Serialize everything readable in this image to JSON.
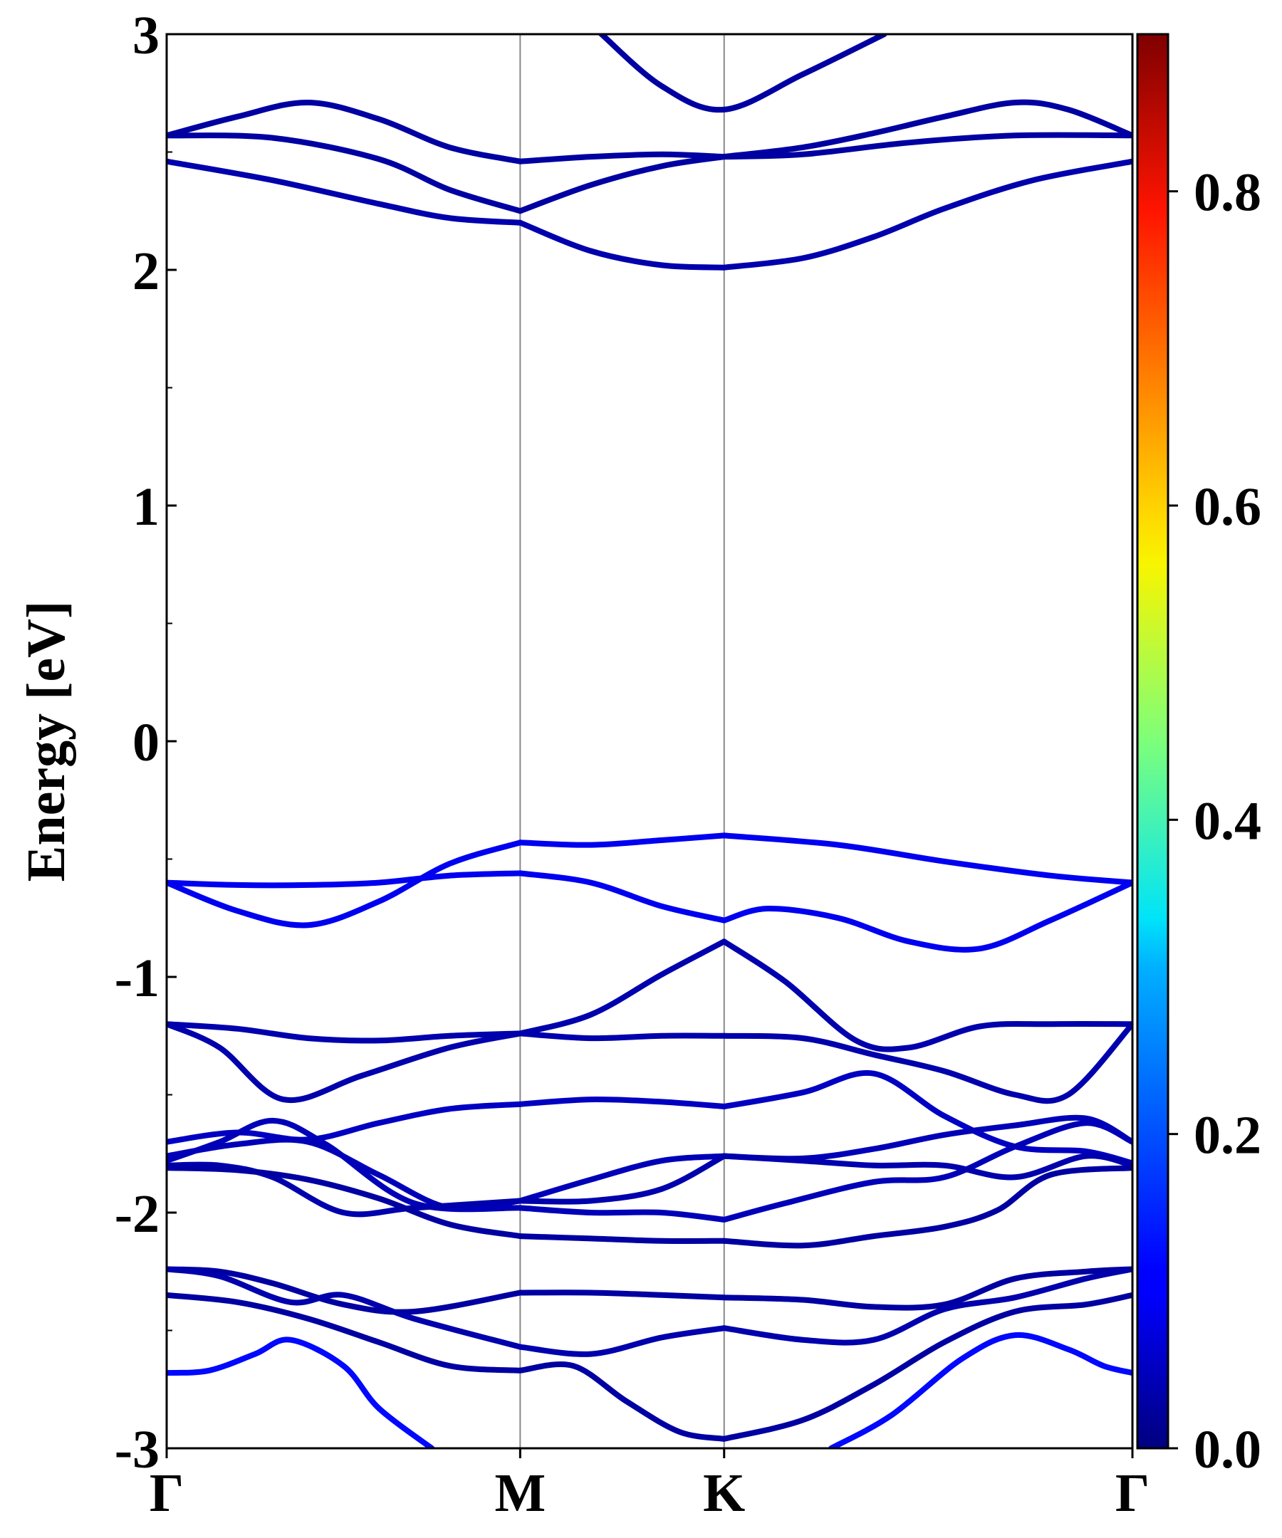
{
  "chart_data": {
    "type": "line",
    "xlabel": "",
    "ylabel": "Energy [eV]",
    "ylim": [
      -3,
      3
    ],
    "yticks": [
      "3",
      "2",
      "1",
      "0",
      "-1",
      "-2",
      "-3"
    ],
    "kpath": {
      "labels": [
        "Γ",
        "M",
        "K",
        "Γ"
      ],
      "positions": [
        0,
        1,
        1.577,
        2.732
      ]
    },
    "grid": false,
    "colorbar": {
      "colormap": "jet",
      "range": [
        0,
        0.9
      ],
      "ticks": [
        "0.0",
        "0.2",
        "0.4",
        "0.6",
        "0.8"
      ]
    },
    "bands": [
      {
        "x": [
          0,
          0.2,
          0.4,
          0.6,
          0.8,
          1.0
        ],
        "y": [
          2.57,
          2.65,
          2.71,
          2.64,
          2.52,
          2.46
        ],
        "weight": 0.03
      },
      {
        "x": [
          1.0,
          1.2,
          1.4,
          1.577
        ],
        "y": [
          2.46,
          2.48,
          2.49,
          2.48
        ],
        "weight": 0.03
      },
      {
        "x": [
          1.577,
          1.8,
          2.0,
          2.2,
          2.4,
          2.55,
          2.732
        ],
        "y": [
          2.48,
          2.52,
          2.58,
          2.65,
          2.71,
          2.68,
          2.57
        ],
        "weight": 0.03
      },
      {
        "x": [
          0,
          0.3,
          0.6,
          0.8,
          1.0
        ],
        "y": [
          2.57,
          2.56,
          2.47,
          2.34,
          2.25
        ],
        "weight": 0.03
      },
      {
        "x": [
          1.0,
          1.2,
          1.4,
          1.577
        ],
        "y": [
          2.25,
          2.36,
          2.44,
          2.48
        ],
        "weight": 0.03
      },
      {
        "x": [
          1.577,
          1.8,
          2.1,
          2.4,
          2.732
        ],
        "y": [
          2.48,
          2.49,
          2.54,
          2.57,
          2.57
        ],
        "weight": 0.03
      },
      {
        "x": [
          0,
          0.3,
          0.6,
          0.8,
          1.0
        ],
        "y": [
          2.46,
          2.38,
          2.28,
          2.22,
          2.2
        ],
        "weight": 0.04
      },
      {
        "x": [
          1.0,
          1.2,
          1.4,
          1.577
        ],
        "y": [
          2.2,
          2.08,
          2.02,
          2.01
        ],
        "weight": 0.04
      },
      {
        "x": [
          1.577,
          1.8,
          2.0,
          2.2,
          2.45,
          2.732
        ],
        "y": [
          2.01,
          2.05,
          2.14,
          2.26,
          2.38,
          2.46
        ],
        "weight": 0.04
      },
      {
        "x": [
          1.23,
          1.4,
          1.577,
          1.8,
          2.03
        ],
        "y": [
          3.0,
          2.78,
          2.68,
          2.83,
          3.0
        ],
        "weight": 0.03
      },
      {
        "x": [
          0,
          0.2,
          0.4,
          0.6,
          0.8,
          1.0
        ],
        "y": [
          -0.6,
          -0.61,
          -0.61,
          -0.6,
          -0.57,
          -0.56
        ],
        "weight": 0.1
      },
      {
        "x": [
          1.0,
          1.2,
          1.4,
          1.577
        ],
        "y": [
          -0.56,
          -0.6,
          -0.7,
          -0.76
        ],
        "weight": 0.1
      },
      {
        "x": [
          1.577,
          1.7,
          1.9,
          2.1,
          2.3,
          2.5,
          2.732
        ],
        "y": [
          -0.76,
          -0.71,
          -0.75,
          -0.85,
          -0.88,
          -0.76,
          -0.6
        ],
        "weight": 0.1
      },
      {
        "x": [
          0,
          0.2,
          0.4,
          0.6,
          0.8,
          1.0
        ],
        "y": [
          -0.6,
          -0.72,
          -0.78,
          -0.68,
          -0.52,
          -0.43
        ],
        "weight": 0.1
      },
      {
        "x": [
          1.0,
          1.2,
          1.4,
          1.577
        ],
        "y": [
          -0.43,
          -0.44,
          -0.42,
          -0.4
        ],
        "weight": 0.1
      },
      {
        "x": [
          1.577,
          1.9,
          2.2,
          2.5,
          2.732
        ],
        "y": [
          -0.4,
          -0.44,
          -0.51,
          -0.57,
          -0.6
        ],
        "weight": 0.1
      },
      {
        "x": [
          0,
          0.2,
          0.4,
          0.6,
          0.8,
          1.0
        ],
        "y": [
          -1.2,
          -1.22,
          -1.26,
          -1.27,
          -1.25,
          -1.24
        ],
        "weight": 0.04
      },
      {
        "x": [
          1.0,
          1.2,
          1.4,
          1.577
        ],
        "y": [
          -1.24,
          -1.16,
          -0.99,
          -0.85
        ],
        "weight": 0.04
      },
      {
        "x": [
          1.577,
          1.75,
          1.95,
          2.1,
          2.3,
          2.5,
          2.732
        ],
        "y": [
          -0.85,
          -1.02,
          -1.27,
          -1.3,
          -1.21,
          -1.2,
          -1.2
        ],
        "weight": 0.04
      },
      {
        "x": [
          0,
          0.15,
          0.33,
          0.55,
          0.8,
          1.0
        ],
        "y": [
          -1.2,
          -1.3,
          -1.52,
          -1.42,
          -1.3,
          -1.24
        ],
        "weight": 0.04
      },
      {
        "x": [
          1.0,
          1.2,
          1.4,
          1.577
        ],
        "y": [
          -1.24,
          -1.26,
          -1.25,
          -1.25
        ],
        "weight": 0.04
      },
      {
        "x": [
          1.577,
          1.8,
          2.0,
          2.2,
          2.4,
          2.55,
          2.732
        ],
        "y": [
          -1.25,
          -1.26,
          -1.33,
          -1.4,
          -1.5,
          -1.5,
          -1.2
        ],
        "weight": 0.04
      },
      {
        "x": [
          0,
          0.2,
          0.4,
          0.6,
          0.8,
          1.0
        ],
        "y": [
          -1.7,
          -1.66,
          -1.69,
          -1.62,
          -1.56,
          -1.54
        ],
        "weight": 0.06
      },
      {
        "x": [
          1.0,
          1.2,
          1.4,
          1.577
        ],
        "y": [
          -1.54,
          -1.52,
          -1.53,
          -1.55
        ],
        "weight": 0.06
      },
      {
        "x": [
          1.577,
          1.8,
          2.0,
          2.2,
          2.4,
          2.6,
          2.732
        ],
        "y": [
          -1.55,
          -1.49,
          -1.41,
          -1.59,
          -1.72,
          -1.74,
          -1.79
        ],
        "weight": 0.06
      },
      {
        "x": [
          0,
          0.15,
          0.3,
          0.45,
          0.7,
          1.0
        ],
        "y": [
          -1.78,
          -1.7,
          -1.61,
          -1.71,
          -1.96,
          -1.98
        ],
        "weight": 0.05
      },
      {
        "x": [
          1.0,
          1.2,
          1.4,
          1.577
        ],
        "y": [
          -1.98,
          -2.0,
          -2.0,
          -2.03
        ],
        "weight": 0.05
      },
      {
        "x": [
          1.577,
          1.75,
          2.0,
          2.2,
          2.4,
          2.6,
          2.732
        ],
        "y": [
          -2.03,
          -1.96,
          -1.87,
          -1.85,
          -1.72,
          -1.62,
          -1.7
        ],
        "weight": 0.05
      },
      {
        "x": [
          0,
          0.2,
          0.4,
          0.6,
          0.8,
          1.0
        ],
        "y": [
          -1.76,
          -1.71,
          -1.7,
          -1.84,
          -1.98,
          -1.95
        ],
        "weight": 0.05
      },
      {
        "x": [
          1.0,
          1.2,
          1.4,
          1.577
        ],
        "y": [
          -1.95,
          -1.86,
          -1.78,
          -1.76
        ],
        "weight": 0.05
      },
      {
        "x": [
          1.577,
          1.8,
          2.0,
          2.2,
          2.4,
          2.6,
          2.732
        ],
        "y": [
          -1.76,
          -1.77,
          -1.73,
          -1.67,
          -1.63,
          -1.6,
          -1.7
        ],
        "weight": 0.05
      },
      {
        "x": [
          0,
          0.15,
          0.3,
          0.5,
          0.7,
          1.0
        ],
        "y": [
          -1.8,
          -1.8,
          -1.85,
          -2.0,
          -1.98,
          -1.95
        ],
        "weight": 0.04
      },
      {
        "x": [
          1.0,
          1.2,
          1.4,
          1.577
        ],
        "y": [
          -1.95,
          -1.95,
          -1.9,
          -1.76
        ],
        "weight": 0.04
      },
      {
        "x": [
          1.577,
          1.8,
          2.0,
          2.2,
          2.4,
          2.6,
          2.732
        ],
        "y": [
          -1.76,
          -1.78,
          -1.8,
          -1.8,
          -1.85,
          -1.76,
          -1.8
        ],
        "weight": 0.04
      },
      {
        "x": [
          0,
          0.2,
          0.4,
          0.6,
          0.8,
          1.0
        ],
        "y": [
          -1.81,
          -1.82,
          -1.86,
          -1.94,
          -2.05,
          -2.1
        ],
        "weight": 0.03
      },
      {
        "x": [
          1.0,
          1.2,
          1.4,
          1.577
        ],
        "y": [
          -2.1,
          -2.11,
          -2.12,
          -2.12
        ],
        "weight": 0.03
      },
      {
        "x": [
          1.577,
          1.8,
          2.0,
          2.2,
          2.35,
          2.5,
          2.732
        ],
        "y": [
          -2.12,
          -2.14,
          -2.1,
          -2.06,
          -1.99,
          -1.84,
          -1.81
        ],
        "weight": 0.03
      },
      {
        "x": [
          0,
          0.15,
          0.3,
          0.5,
          0.7,
          1.0
        ],
        "y": [
          -2.24,
          -2.25,
          -2.3,
          -2.39,
          -2.42,
          -2.34
        ],
        "weight": 0.03
      },
      {
        "x": [
          1.0,
          1.2,
          1.4,
          1.577
        ],
        "y": [
          -2.34,
          -2.34,
          -2.35,
          -2.36
        ],
        "weight": 0.03
      },
      {
        "x": [
          1.577,
          1.8,
          2.0,
          2.2,
          2.4,
          2.6,
          2.732
        ],
        "y": [
          -2.36,
          -2.37,
          -2.4,
          -2.39,
          -2.28,
          -2.25,
          -2.24
        ],
        "weight": 0.03
      },
      {
        "x": [
          0,
          0.15,
          0.35,
          0.5,
          0.7,
          1.0
        ],
        "y": [
          -2.24,
          -2.27,
          -2.38,
          -2.35,
          -2.45,
          -2.57
        ],
        "weight": 0.04
      },
      {
        "x": [
          1.0,
          1.2,
          1.4,
          1.577
        ],
        "y": [
          -2.57,
          -2.6,
          -2.53,
          -2.49
        ],
        "weight": 0.04
      },
      {
        "x": [
          1.577,
          1.8,
          2.0,
          2.2,
          2.4,
          2.6,
          2.732
        ],
        "y": [
          -2.49,
          -2.54,
          -2.54,
          -2.41,
          -2.36,
          -2.28,
          -2.24
        ],
        "weight": 0.04
      },
      {
        "x": [
          0,
          0.2,
          0.4,
          0.6,
          0.8,
          1.0
        ],
        "y": [
          -2.35,
          -2.38,
          -2.45,
          -2.55,
          -2.65,
          -2.67
        ],
        "weight": 0.03
      },
      {
        "x": [
          1.0,
          1.15,
          1.3,
          1.45,
          1.577
        ],
        "y": [
          -2.67,
          -2.65,
          -2.8,
          -2.93,
          -2.96
        ],
        "weight": 0.03
      },
      {
        "x": [
          1.577,
          1.8,
          2.0,
          2.2,
          2.4,
          2.6,
          2.732
        ],
        "y": [
          -2.96,
          -2.88,
          -2.73,
          -2.55,
          -2.42,
          -2.39,
          -2.35
        ],
        "weight": 0.03
      },
      {
        "x": [
          0,
          0.12,
          0.25,
          0.35,
          0.5,
          0.6,
          0.75
        ],
        "y": [
          -2.68,
          -2.67,
          -2.6,
          -2.54,
          -2.65,
          -2.83,
          -3.0
        ],
        "weight": 0.12
      },
      {
        "x": [
          1.88,
          2.05,
          2.25,
          2.4,
          2.55,
          2.65,
          2.732
        ],
        "y": [
          -3.0,
          -2.86,
          -2.62,
          -2.52,
          -2.58,
          -2.65,
          -2.68
        ],
        "weight": 0.12
      }
    ]
  }
}
